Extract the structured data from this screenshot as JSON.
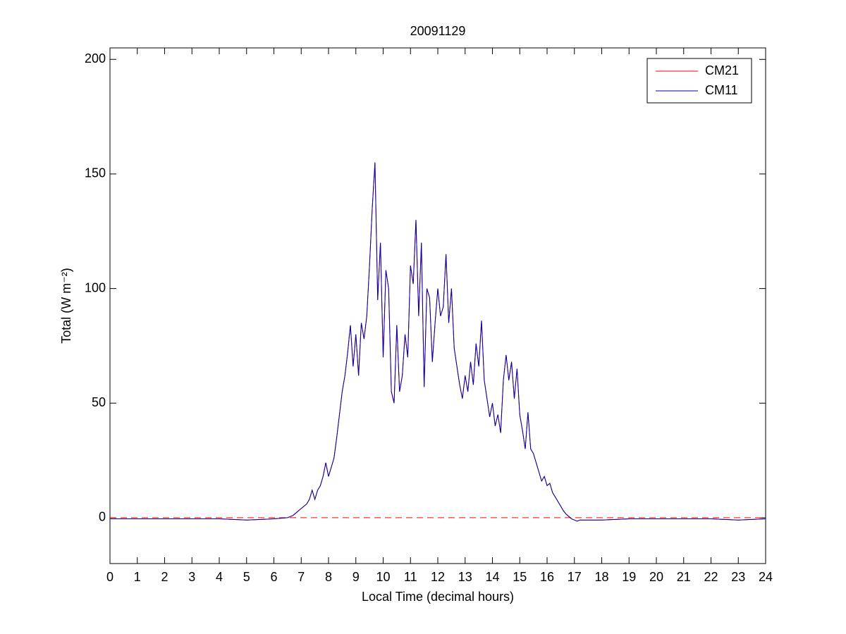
{
  "chart_data": {
    "type": "line",
    "title": "20091129",
    "xlabel": "Local Time (decimal hours)",
    "ylabel": "Total (W m⁻²)",
    "x": [
      0,
      1,
      2,
      3,
      4,
      5,
      6,
      6.5,
      6.6,
      6.7,
      6.8,
      6.9,
      7,
      7.1,
      7.2,
      7.3,
      7.4,
      7.5,
      7.6,
      7.7,
      7.8,
      7.9,
      8,
      8.1,
      8.2,
      8.3,
      8.4,
      8.5,
      8.6,
      8.7,
      8.8,
      8.9,
      9,
      9.1,
      9.2,
      9.3,
      9.4,
      9.5,
      9.6,
      9.7,
      9.8,
      9.9,
      10,
      10.1,
      10.2,
      10.3,
      10.4,
      10.5,
      10.6,
      10.7,
      10.8,
      10.9,
      11,
      11.1,
      11.2,
      11.3,
      11.4,
      11.5,
      11.6,
      11.7,
      11.8,
      11.9,
      12,
      12.1,
      12.2,
      12.3,
      12.4,
      12.5,
      12.6,
      12.7,
      12.8,
      12.9,
      13,
      13.1,
      13.2,
      13.3,
      13.4,
      13.5,
      13.6,
      13.7,
      13.8,
      13.9,
      14,
      14.1,
      14.2,
      14.3,
      14.4,
      14.5,
      14.6,
      14.7,
      14.8,
      14.9,
      15,
      15.1,
      15.2,
      15.3,
      15.4,
      15.5,
      15.6,
      15.7,
      15.8,
      15.9,
      16,
      16.1,
      16.2,
      16.3,
      16.4,
      16.5,
      16.6,
      16.7,
      16.8,
      16.9,
      17,
      17.1,
      17.2,
      17.3,
      17.4,
      17.5,
      18,
      19,
      20,
      21,
      22,
      23,
      24
    ],
    "series": [
      {
        "name": "CM21",
        "color": "#ff0000",
        "values": [
          -0.5,
          -0.5,
          -0.5,
          -0.5,
          -0.5,
          -1,
          -0.5,
          0,
          0.5,
          1,
          2,
          3,
          4,
          5,
          6,
          8,
          12,
          8,
          12,
          14,
          18,
          24,
          18,
          22,
          26,
          35,
          45,
          55,
          62,
          72,
          84,
          66,
          80,
          62,
          85,
          78,
          88,
          110,
          135,
          155,
          95,
          120,
          70,
          108,
          100,
          55,
          50,
          84,
          55,
          62,
          80,
          70,
          110,
          102,
          130,
          88,
          120,
          57,
          100,
          96,
          68,
          85,
          100,
          88,
          92,
          115,
          85,
          100,
          74,
          66,
          58,
          52,
          62,
          55,
          68,
          58,
          76,
          66,
          86,
          60,
          52,
          44,
          50,
          40,
          45,
          37,
          60,
          71,
          60,
          68,
          52,
          65,
          45,
          38,
          30,
          46,
          30,
          28,
          24,
          20,
          16,
          18,
          14,
          15,
          11,
          9,
          7,
          5,
          3,
          1.5,
          0.5,
          -0.5,
          -1,
          -1.5,
          -1,
          -1,
          -1,
          -1,
          -1,
          -0.5,
          -0.5,
          -0.5,
          -0.5,
          -1,
          -0.5
        ]
      },
      {
        "name": "CM11",
        "color": "#0000aa",
        "values": [
          -0.5,
          -0.5,
          -0.5,
          -0.5,
          -0.5,
          -1,
          -0.5,
          0,
          0.5,
          1,
          2,
          3,
          4,
          5,
          6,
          8,
          12,
          8,
          12,
          14,
          18,
          24,
          18,
          22,
          26,
          35,
          45,
          55,
          62,
          72,
          84,
          66,
          80,
          62,
          85,
          78,
          88,
          110,
          135,
          155,
          95,
          120,
          70,
          108,
          100,
          55,
          50,
          84,
          55,
          62,
          80,
          70,
          110,
          102,
          130,
          88,
          120,
          57,
          100,
          96,
          68,
          85,
          100,
          88,
          92,
          115,
          85,
          100,
          74,
          66,
          58,
          52,
          62,
          55,
          68,
          58,
          76,
          66,
          86,
          60,
          52,
          44,
          50,
          40,
          45,
          37,
          60,
          71,
          60,
          68,
          52,
          65,
          45,
          38,
          30,
          46,
          30,
          28,
          24,
          20,
          16,
          18,
          14,
          15,
          11,
          9,
          7,
          5,
          3,
          1.5,
          0.5,
          -0.5,
          -1,
          -1.5,
          -1,
          -1,
          -1,
          -1,
          -1,
          -0.5,
          -0.5,
          -0.5,
          -0.5,
          -1,
          -0.5
        ]
      }
    ],
    "xlim": [
      0,
      24
    ],
    "xticks": [
      0,
      1,
      2,
      3,
      4,
      5,
      6,
      7,
      8,
      9,
      10,
      11,
      12,
      13,
      14,
      15,
      16,
      17,
      18,
      19,
      20,
      21,
      22,
      23,
      24
    ],
    "ylim": [
      -20,
      205
    ],
    "yticks": [
      0,
      50,
      100,
      150,
      200
    ],
    "hline": {
      "value": 0,
      "color": "#ff0000",
      "dashed": true
    },
    "legend": "upper right"
  }
}
